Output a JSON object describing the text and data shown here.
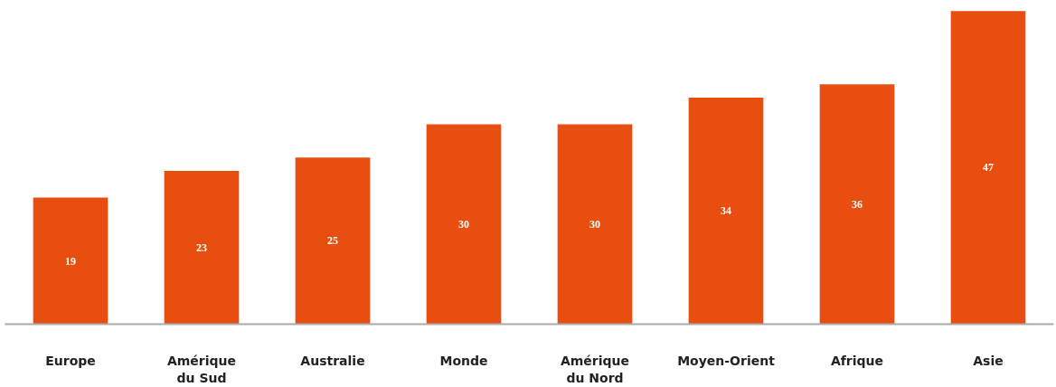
{
  "chart_data": {
    "type": "bar",
    "categories": [
      "Europe",
      "Amérique du Sud",
      "Australie",
      "Monde",
      "Amérique du Nord",
      "Moyen-Orient",
      "Afrique",
      "Asie"
    ],
    "values": [
      19,
      23,
      25,
      30,
      30,
      34,
      36,
      47
    ],
    "color": "#e84e0f",
    "data_labels": true,
    "grid": false
  }
}
